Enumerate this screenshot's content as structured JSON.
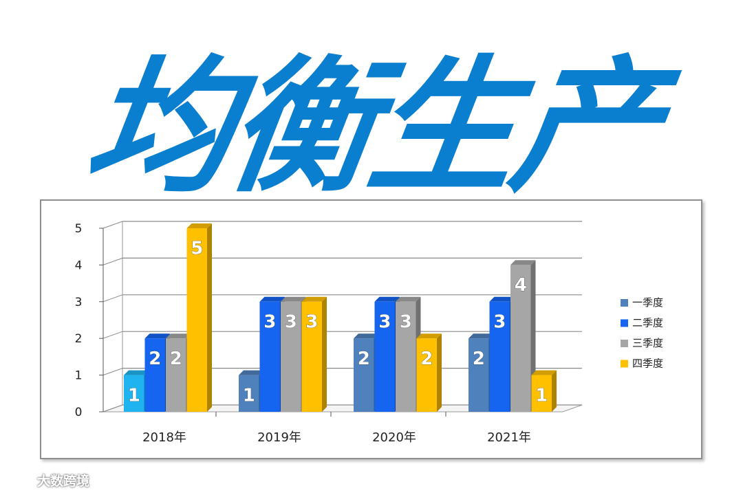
{
  "title": "均衡生产",
  "watermark": "大数跨境",
  "colors": {
    "title": "#0a7fd0",
    "series": [
      "#4f81bd",
      "#1565f0",
      "#a6a6a6",
      "#ffc000"
    ],
    "first_bar_2018": "#1fb4f0"
  },
  "chart_data": {
    "type": "bar",
    "style": "3d-clustered-column",
    "categories": [
      "2018年",
      "2019年",
      "2020年",
      "2021年"
    ],
    "series": [
      {
        "name": "一季度",
        "values": [
          1,
          1,
          2,
          2
        ]
      },
      {
        "name": "二季度",
        "values": [
          2,
          3,
          3,
          3
        ]
      },
      {
        "name": "三季度",
        "values": [
          2,
          3,
          3,
          4
        ]
      },
      {
        "name": "四季度",
        "values": [
          5,
          3,
          2,
          1
        ]
      }
    ],
    "data_labels": [
      [
        "1",
        "2",
        "2",
        "5"
      ],
      [
        "1",
        "3",
        "3",
        "3"
      ],
      [
        "2",
        "3",
        "3",
        "2"
      ],
      [
        "2",
        "3",
        "4",
        "1"
      ]
    ],
    "y_ticks": [
      "0",
      "1",
      "2",
      "3",
      "4",
      "5"
    ],
    "ylim": [
      0,
      5
    ],
    "grid": true,
    "legend_position": "right"
  }
}
